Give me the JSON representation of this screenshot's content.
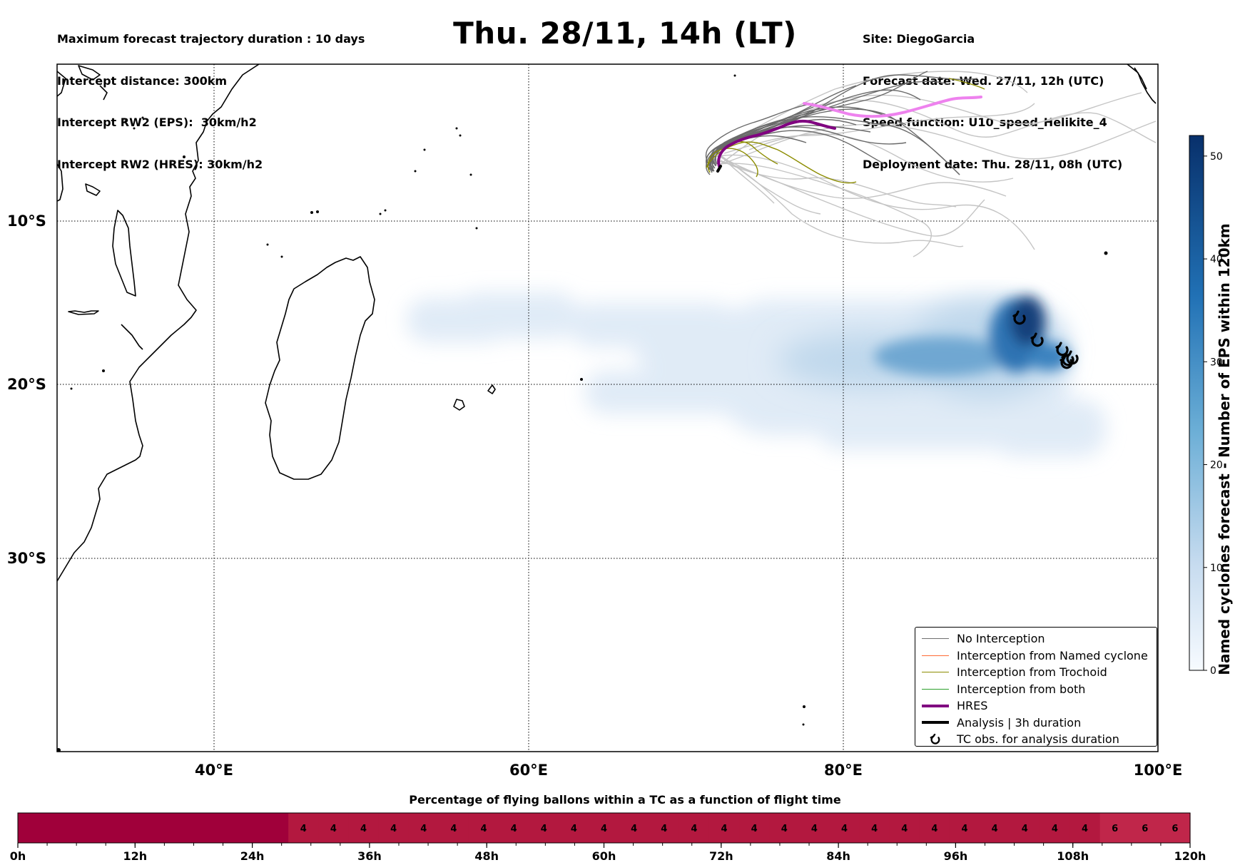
{
  "header": {
    "left_lines": [
      "Maximum forecast trajectory duration : 10 days",
      "Intercept distance: 300km",
      "Intercept RW2 (EPS):  30km/h2",
      "Intercept RW2 (HRES): 30km/h2"
    ],
    "title": "Thu. 28/11, 14h (LT)",
    "right_lines": [
      "Site: DiegoGarcia",
      "Forecast date: Wed. 27/11, 12h (UTC)",
      "Speed function: U10_speed_Helikite_4",
      "Deployment date: Thu. 28/11, 08h (UTC)"
    ]
  },
  "map": {
    "lat_labels": [
      "10°S",
      "20°S",
      "30°S"
    ],
    "lon_labels": [
      "40°E",
      "60°E",
      "80°E",
      "100°E"
    ],
    "colors": {
      "no_interception": "#6e6e6e",
      "named_cyclone": "#ff6a33",
      "trochoid": "#8c8c00",
      "both": "#2ca02c",
      "hres": "#800080",
      "hres_future": "#ee82ee",
      "analysis": "#000000"
    }
  },
  "legend": {
    "items": [
      {
        "label": "No Interception",
        "color": "#6e6e6e",
        "style": "thin"
      },
      {
        "label": "Interception from Named cyclone",
        "color": "#ff6a33",
        "style": "thin"
      },
      {
        "label": "Interception from Trochoid",
        "color": "#8c8c00",
        "style": "thin"
      },
      {
        "label": "Interception from both",
        "color": "#2ca02c",
        "style": "thin"
      },
      {
        "label": "HRES",
        "color": "#800080",
        "style": "thick"
      },
      {
        "label": "Analysis | 3h duration",
        "color": "#000000",
        "style": "thick"
      },
      {
        "label": "TC obs. for analysis duration",
        "color": "#000000",
        "style": "symbol",
        "icon": "cyclone-symbol-icon"
      }
    ]
  },
  "colorbar": {
    "title": "Named cyclones forecast - Number of EPS within 120km",
    "ticks": [
      "0",
      "10",
      "20",
      "30",
      "40",
      "50"
    ],
    "min": 0,
    "max": 52
  },
  "bottom_bar": {
    "title": "Percentage of flying ballons within a TC as a function of flight time",
    "tick_labels": [
      "0h",
      "12h",
      "24h",
      "36h",
      "48h",
      "60h",
      "72h",
      "84h",
      "96h",
      "108h",
      "120h"
    ],
    "segment_values": [
      "",
      "",
      "",
      "",
      "",
      "",
      "",
      "",
      "",
      "4",
      "4",
      "4",
      "4",
      "4",
      "4",
      "4",
      "4",
      "4",
      "4",
      "4",
      "4",
      "4",
      "4",
      "4",
      "4",
      "4",
      "4",
      "4",
      "4",
      "4",
      "4",
      "4",
      "4",
      "4",
      "4",
      "4",
      "6",
      "6",
      "6"
    ],
    "colors": {
      "zero": "#a0003a",
      "four": "#b3183f",
      "six": "#c0264a"
    }
  },
  "chart_data": {
    "type": "heatmap",
    "title": "Thu. 28/11, 14h (LT)",
    "x_axis": {
      "label": "",
      "range_deg_E": [
        30,
        100
      ],
      "ticks": [
        "40°E",
        "60°E",
        "80°E",
        "100°E"
      ]
    },
    "y_axis": {
      "label": "",
      "range_deg_S": [
        -3,
        47
      ],
      "ticks": [
        "10°S",
        "20°S",
        "30°S"
      ]
    },
    "tc_observations": [
      [
        91.2,
        -16.1
      ],
      [
        92.3,
        -17.5
      ],
      [
        93.8,
        -18.1
      ],
      [
        94.2,
        -18.7
      ],
      [
        94.4,
        -18.6
      ],
      [
        94.1,
        -18.9
      ]
    ],
    "deployment_site": [
      72.4,
      -7.3
    ],
    "hres_track": [
      [
        72.4,
        -7.3
      ],
      [
        72.3,
        -6.6
      ],
      [
        72.9,
        -6.0
      ],
      [
        74.0,
        -5.3
      ],
      [
        75.5,
        -4.6
      ],
      [
        77.0,
        -4.1
      ],
      [
        78.3,
        -4.2
      ]
    ],
    "hres_track_future": [
      [
        78.3,
        -4.2
      ],
      [
        79.5,
        -4.6
      ],
      [
        81.0,
        -5.0
      ],
      [
        83.0,
        -4.9
      ],
      [
        85.0,
        -4.6
      ],
      [
        87.0,
        -3.8
      ],
      [
        88.5,
        -3.7
      ]
    ]
  }
}
